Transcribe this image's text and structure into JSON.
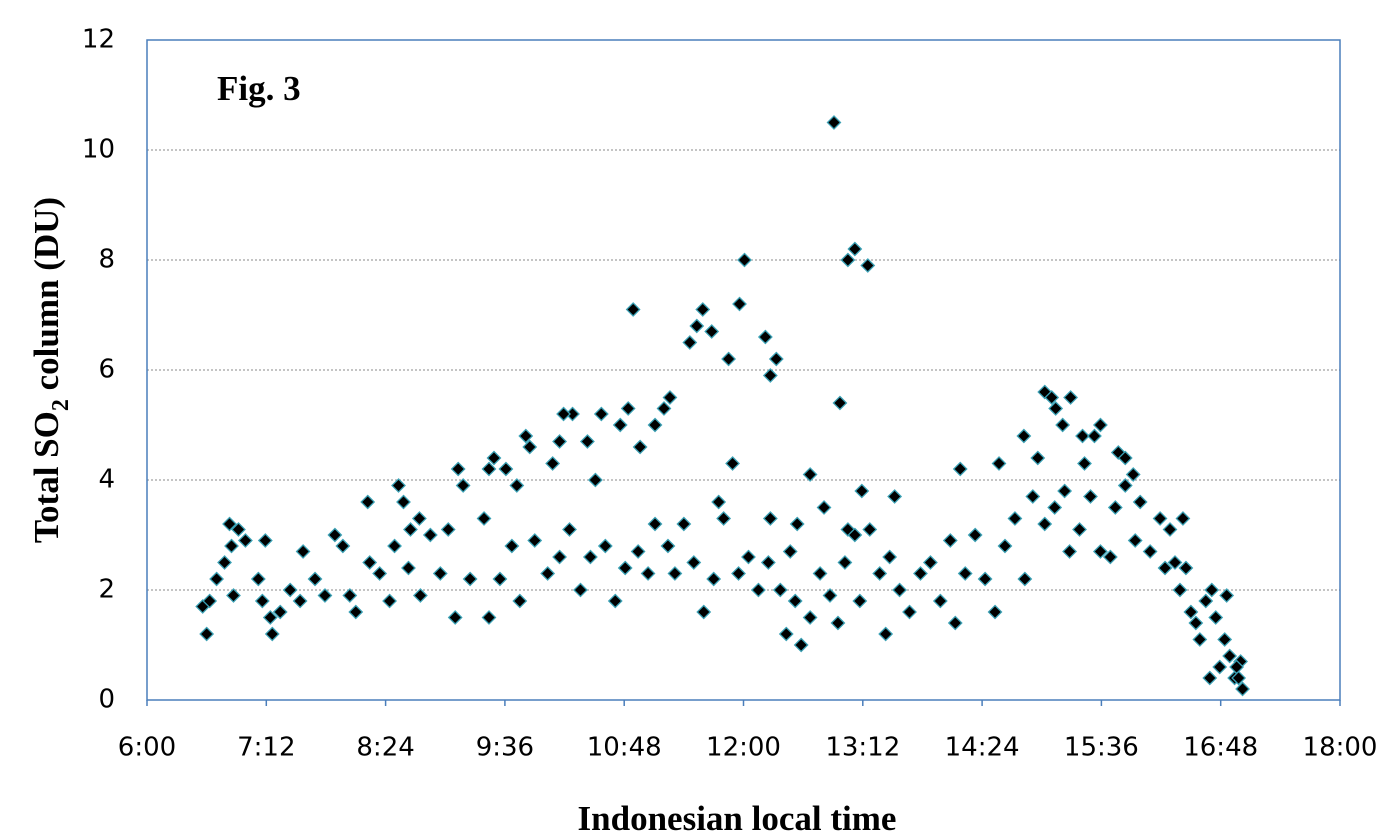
{
  "chart_data": {
    "type": "scatter",
    "annotation": "Fig. 3",
    "xlabel": "Indonesian local time",
    "ylabel": [
      "Total SO",
      "2",
      " column (DU)"
    ],
    "color": "#000000",
    "edgecolor": "#3aa0b4",
    "marker": "diamond",
    "grid": true,
    "xlim": [
      6,
      18
    ],
    "ylim": [
      0,
      12
    ],
    "xticks": [
      {
        "value": 6,
        "label": "6:00"
      },
      {
        "value": 7.2,
        "label": "7:12"
      },
      {
        "value": 8.4,
        "label": "8:24"
      },
      {
        "value": 9.6,
        "label": "9:36"
      },
      {
        "value": 10.8,
        "label": "10:48"
      },
      {
        "value": 12,
        "label": "12:00"
      },
      {
        "value": 13.2,
        "label": "13:12"
      },
      {
        "value": 14.4,
        "label": "14:24"
      },
      {
        "value": 15.6,
        "label": "15:36"
      },
      {
        "value": 16.8,
        "label": "16:48"
      },
      {
        "value": 18,
        "label": "18:00"
      }
    ],
    "yticks": [
      0,
      2,
      4,
      6,
      8,
      10,
      12
    ],
    "x": [
      12.91,
      10.89,
      12.01,
      13.12,
      13.05,
      13.25,
      11.59,
      11.96,
      11.53,
      11.68,
      11.46,
      11.85,
      12.22,
      12.33,
      12.27,
      12.97,
      11.26,
      11.2,
      11.11,
      10.84,
      10.76,
      10.96,
      10.57,
      10.28,
      10.19,
      10.43,
      10.15,
      10.08,
      9.81,
      9.85,
      9.49,
      9.44,
      9.61,
      9.72,
      9.13,
      9.18,
      9.39,
      8.53,
      8.58,
      8.22,
      8.65,
      8.74,
      10.51,
      11.89,
      12.67,
      13.19,
      13.52,
      14.18,
      14.57,
      14.82,
      14.96,
      15.03,
      15.1,
      15.14,
      15.29,
      15.21,
      15.41,
      15.53,
      15.59,
      15.43,
      15.77,
      15.84,
      15.92,
      6.6,
      7.26,
      12.43,
      12.58,
      13.43,
      16.94,
      17.0,
      16.96,
      17.02,
      16.98,
      16.69,
      16.79,
      16.89,
      16.84,
      16.59,
      16.86,
      16.71,
      16.42,
      6.56,
      6.63,
      6.7,
      6.78,
      6.85,
      6.83,
      6.92,
      6.99,
      6.87,
      7.19,
      7.12,
      7.16,
      7.24,
      7.34,
      7.44,
      7.54,
      7.57,
      7.69,
      7.79,
      7.89,
      7.97,
      8.04,
      8.1,
      8.24,
      8.34,
      8.44,
      8.49,
      8.63,
      8.75,
      8.85,
      8.95,
      9.03,
      9.1,
      9.25,
      9.44,
      9.55,
      9.67,
      9.75,
      9.9,
      10.03,
      10.15,
      10.25,
      10.36,
      10.46,
      10.61,
      10.71,
      10.81,
      10.94,
      11.04,
      11.11,
      11.24,
      11.31,
      11.4,
      11.5,
      11.6,
      11.7,
      11.75,
      11.8,
      11.95,
      12.05,
      12.15,
      12.25,
      12.27,
      12.37,
      12.47,
      12.52,
      12.54,
      12.67,
      12.77,
      12.81,
      12.87,
      12.95,
      13.02,
      13.05,
      13.12,
      13.17,
      13.27,
      13.37,
      13.47,
      13.57,
      13.67,
      13.78,
      13.88,
      13.98,
      14.08,
      14.13,
      14.23,
      14.33,
      14.43,
      14.53,
      14.63,
      14.73,
      14.83,
      14.91,
      15.03,
      15.13,
      15.23,
      15.28,
      15.38,
      15.49,
      15.59,
      15.69,
      15.74,
      15.84,
      15.94,
      15.99,
      16.09,
      16.19,
      16.24,
      16.29,
      16.34,
      16.39,
      16.45,
      16.5,
      16.55,
      16.65,
      16.75
    ],
    "values": [
      10.5,
      7.1,
      8.0,
      8.2,
      8.0,
      7.9,
      7.1,
      7.2,
      6.8,
      6.7,
      6.5,
      6.2,
      6.6,
      6.2,
      5.9,
      5.4,
      5.5,
      5.3,
      5.0,
      5.3,
      5.0,
      4.6,
      5.2,
      5.2,
      5.2,
      4.7,
      4.7,
      4.3,
      4.8,
      4.6,
      4.4,
      4.2,
      4.2,
      3.9,
      4.2,
      3.9,
      3.3,
      3.9,
      3.6,
      3.6,
      3.1,
      3.3,
      4.0,
      4.3,
      4.1,
      3.8,
      3.7,
      4.2,
      4.3,
      4.8,
      4.4,
      5.6,
      5.5,
      5.3,
      5.5,
      5.0,
      4.8,
      4.8,
      5.0,
      4.3,
      4.5,
      4.4,
      4.1,
      1.2,
      1.2,
      1.2,
      1.0,
      1.2,
      0.4,
      0.7,
      0.6,
      0.2,
      0.4,
      0.4,
      0.6,
      0.8,
      1.1,
      1.1,
      1.9,
      2.0,
      3.3,
      1.7,
      1.8,
      2.2,
      2.5,
      2.8,
      3.2,
      3.1,
      2.9,
      1.9,
      2.9,
      2.2,
      1.8,
      1.5,
      1.6,
      2.0,
      1.8,
      2.7,
      2.2,
      1.9,
      3.0,
      2.8,
      1.9,
      1.6,
      2.5,
      2.3,
      1.8,
      2.8,
      2.4,
      1.9,
      3.0,
      2.3,
      3.1,
      1.5,
      2.2,
      1.5,
      2.2,
      2.8,
      1.8,
      2.9,
      2.3,
      2.6,
      3.1,
      2.0,
      2.6,
      2.8,
      1.8,
      2.4,
      2.7,
      2.3,
      3.2,
      2.8,
      2.3,
      3.2,
      2.5,
      1.6,
      2.2,
      3.6,
      3.3,
      2.3,
      2.6,
      2.0,
      2.5,
      3.3,
      2.0,
      2.7,
      1.8,
      3.2,
      1.5,
      2.3,
      3.5,
      1.9,
      1.4,
      2.5,
      3.1,
      3.0,
      1.8,
      3.1,
      2.3,
      2.6,
      2.0,
      1.6,
      2.3,
      2.5,
      1.8,
      2.9,
      1.4,
      2.3,
      3.0,
      2.2,
      1.6,
      2.8,
      3.3,
      2.2,
      3.7,
      3.2,
      3.5,
      3.8,
      2.7,
      3.1,
      3.7,
      2.7,
      2.6,
      3.5,
      3.9,
      2.9,
      3.6,
      2.7,
      3.3,
      2.4,
      3.1,
      2.5,
      2.0,
      2.4,
      1.6,
      1.4,
      1.8,
      1.5
    ]
  }
}
